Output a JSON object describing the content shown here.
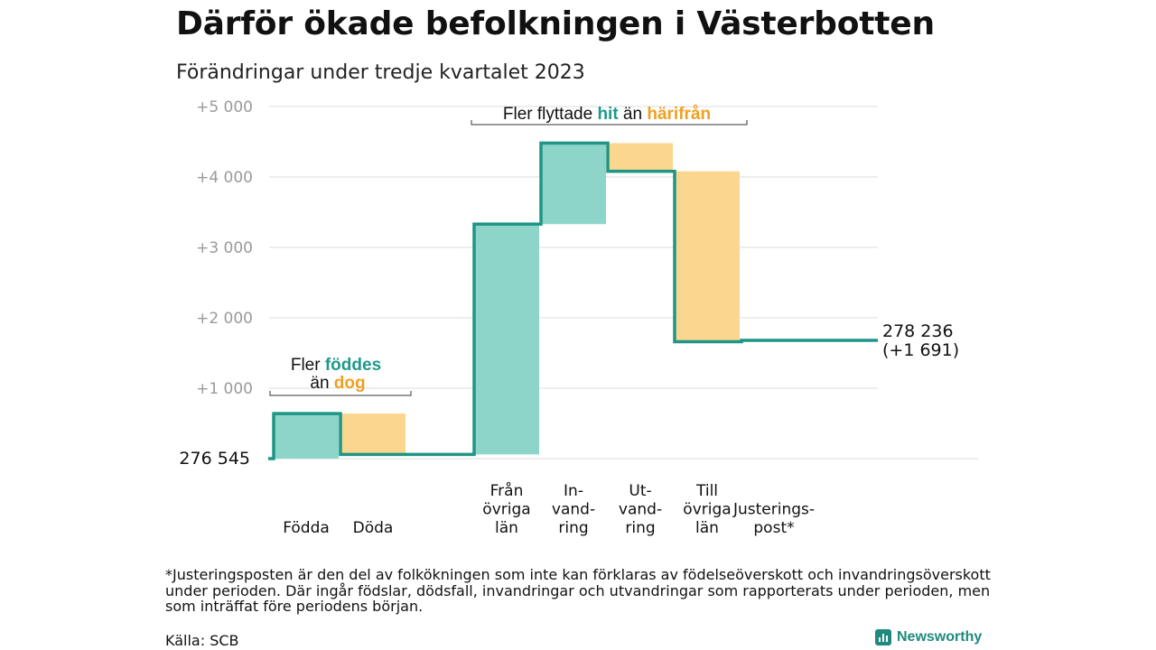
{
  "title": "Därför ökade befolkningen i Västerbotten",
  "subtitle": "Förändringar under tredje kvartalet 2023",
  "chart_data": {
    "type": "waterfall",
    "start_value": 276545,
    "start_label": "276  545",
    "end_label_line1": "278 236",
    "end_label_line2": "(+1 691)",
    "y_offset_ticks": [
      "+1  000",
      "+2  000",
      "+3  000",
      "+4  000",
      "+5  000"
    ],
    "y_offset_values": [
      1000,
      2000,
      3000,
      4000,
      5000
    ],
    "ylim_offset": [
      0,
      5000
    ],
    "steps": [
      {
        "label": [
          "Födda"
        ],
        "change": 640,
        "direction": "increase"
      },
      {
        "label": [
          "Döda"
        ],
        "change": -580,
        "direction": "decrease"
      },
      {
        "label": [
          ""
        ],
        "change": 0,
        "direction": "none"
      },
      {
        "label": [
          "Från",
          "övriga",
          "län"
        ],
        "change": 3270,
        "direction": "increase"
      },
      {
        "label": [
          "In-",
          "vand-",
          "ring"
        ],
        "change": 1150,
        "direction": "increase"
      },
      {
        "label": [
          "Ut-",
          "vand-",
          "ring"
        ],
        "change": -400,
        "direction": "decrease"
      },
      {
        "label": [
          "Till",
          "övriga",
          "län"
        ],
        "change": -2420,
        "direction": "decrease"
      },
      {
        "label": [
          "Justerings-",
          "post*"
        ],
        "change": 20,
        "direction": "increase"
      }
    ],
    "annotations": [
      {
        "parts": [
          "Fler ",
          "föddes"
        ],
        "parts2": [
          "än ",
          "dog"
        ]
      },
      {
        "parts": [
          "Fler flyttade ",
          "hit",
          " än ",
          "härifrån"
        ]
      }
    ],
    "colors": {
      "increase": "#8dd5c9",
      "decrease": "#fbd68f",
      "line": "#1e9585",
      "grid": "#dcdcdc",
      "teal_text": "#1e9a8a",
      "orange_text": "#f0a020"
    }
  },
  "footnote": "*Justeringsposten är den del av folkökningen som inte kan förklaras av födelseöverskott och invandringsöverskott under perioden. Där ingår födslar, dödsfall, invandringar och utvandringar som rapporterats under perioden, men som inträffat före periodens början.",
  "source": "Källa: SCB",
  "brand": "Newsworthy"
}
